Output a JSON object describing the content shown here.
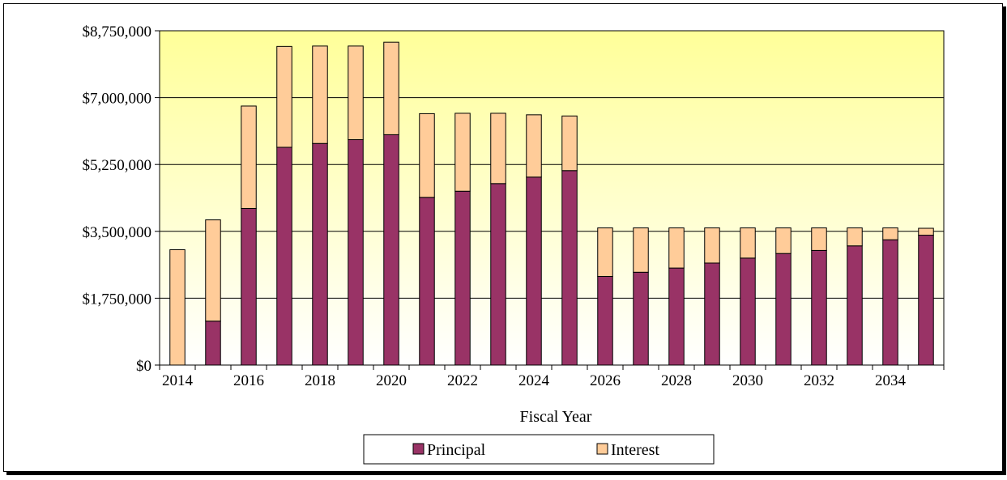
{
  "chart_data": {
    "type": "bar",
    "stacked": true,
    "categories": [
      "2014",
      "2015",
      "2016",
      "2017",
      "2018",
      "2019",
      "2020",
      "2021",
      "2022",
      "2023",
      "2024",
      "2025",
      "2026",
      "2027",
      "2028",
      "2029",
      "2030",
      "2031",
      "2032",
      "2033",
      "2034",
      "2035"
    ],
    "x_tick_labels": [
      "2014",
      "2016",
      "2018",
      "2020",
      "2022",
      "2024",
      "2026",
      "2028",
      "2030",
      "2032",
      "2034"
    ],
    "series": [
      {
        "name": "Principal",
        "values": [
          0,
          1150000,
          4100000,
          5700000,
          5800000,
          5900000,
          6030000,
          4390000,
          4550000,
          4750000,
          4920000,
          5090000,
          2320000,
          2430000,
          2540000,
          2670000,
          2800000,
          2920000,
          3000000,
          3120000,
          3280000,
          3400000
        ]
      },
      {
        "name": "Interest",
        "values": [
          3020000,
          2650000,
          2680000,
          2640000,
          2550000,
          2450000,
          2420000,
          2190000,
          2040000,
          1840000,
          1630000,
          1430000,
          1270000,
          1160000,
          1050000,
          920000,
          790000,
          670000,
          590000,
          470000,
          310000,
          180000
        ]
      }
    ],
    "colors": {
      "Principal": "#993366",
      "Interest": "#FFCC99",
      "plot_top": "#FFFF99",
      "plot_bottom": "#FFFFFF"
    },
    "y_ticks": [
      0,
      1750000,
      3500000,
      5250000,
      7000000,
      8750000
    ],
    "y_tick_labels": [
      "$0",
      "$1,750,000",
      "$3,500,000",
      "$5,250,000",
      "$7,000,000",
      "$8,750,000"
    ],
    "ylim": [
      0,
      8750000
    ],
    "xlabel": "Fiscal Year",
    "ylabel": "",
    "title": "",
    "grid": true,
    "legend": {
      "placement": "bottom-center",
      "items": [
        "Principal",
        "Interest"
      ]
    }
  }
}
